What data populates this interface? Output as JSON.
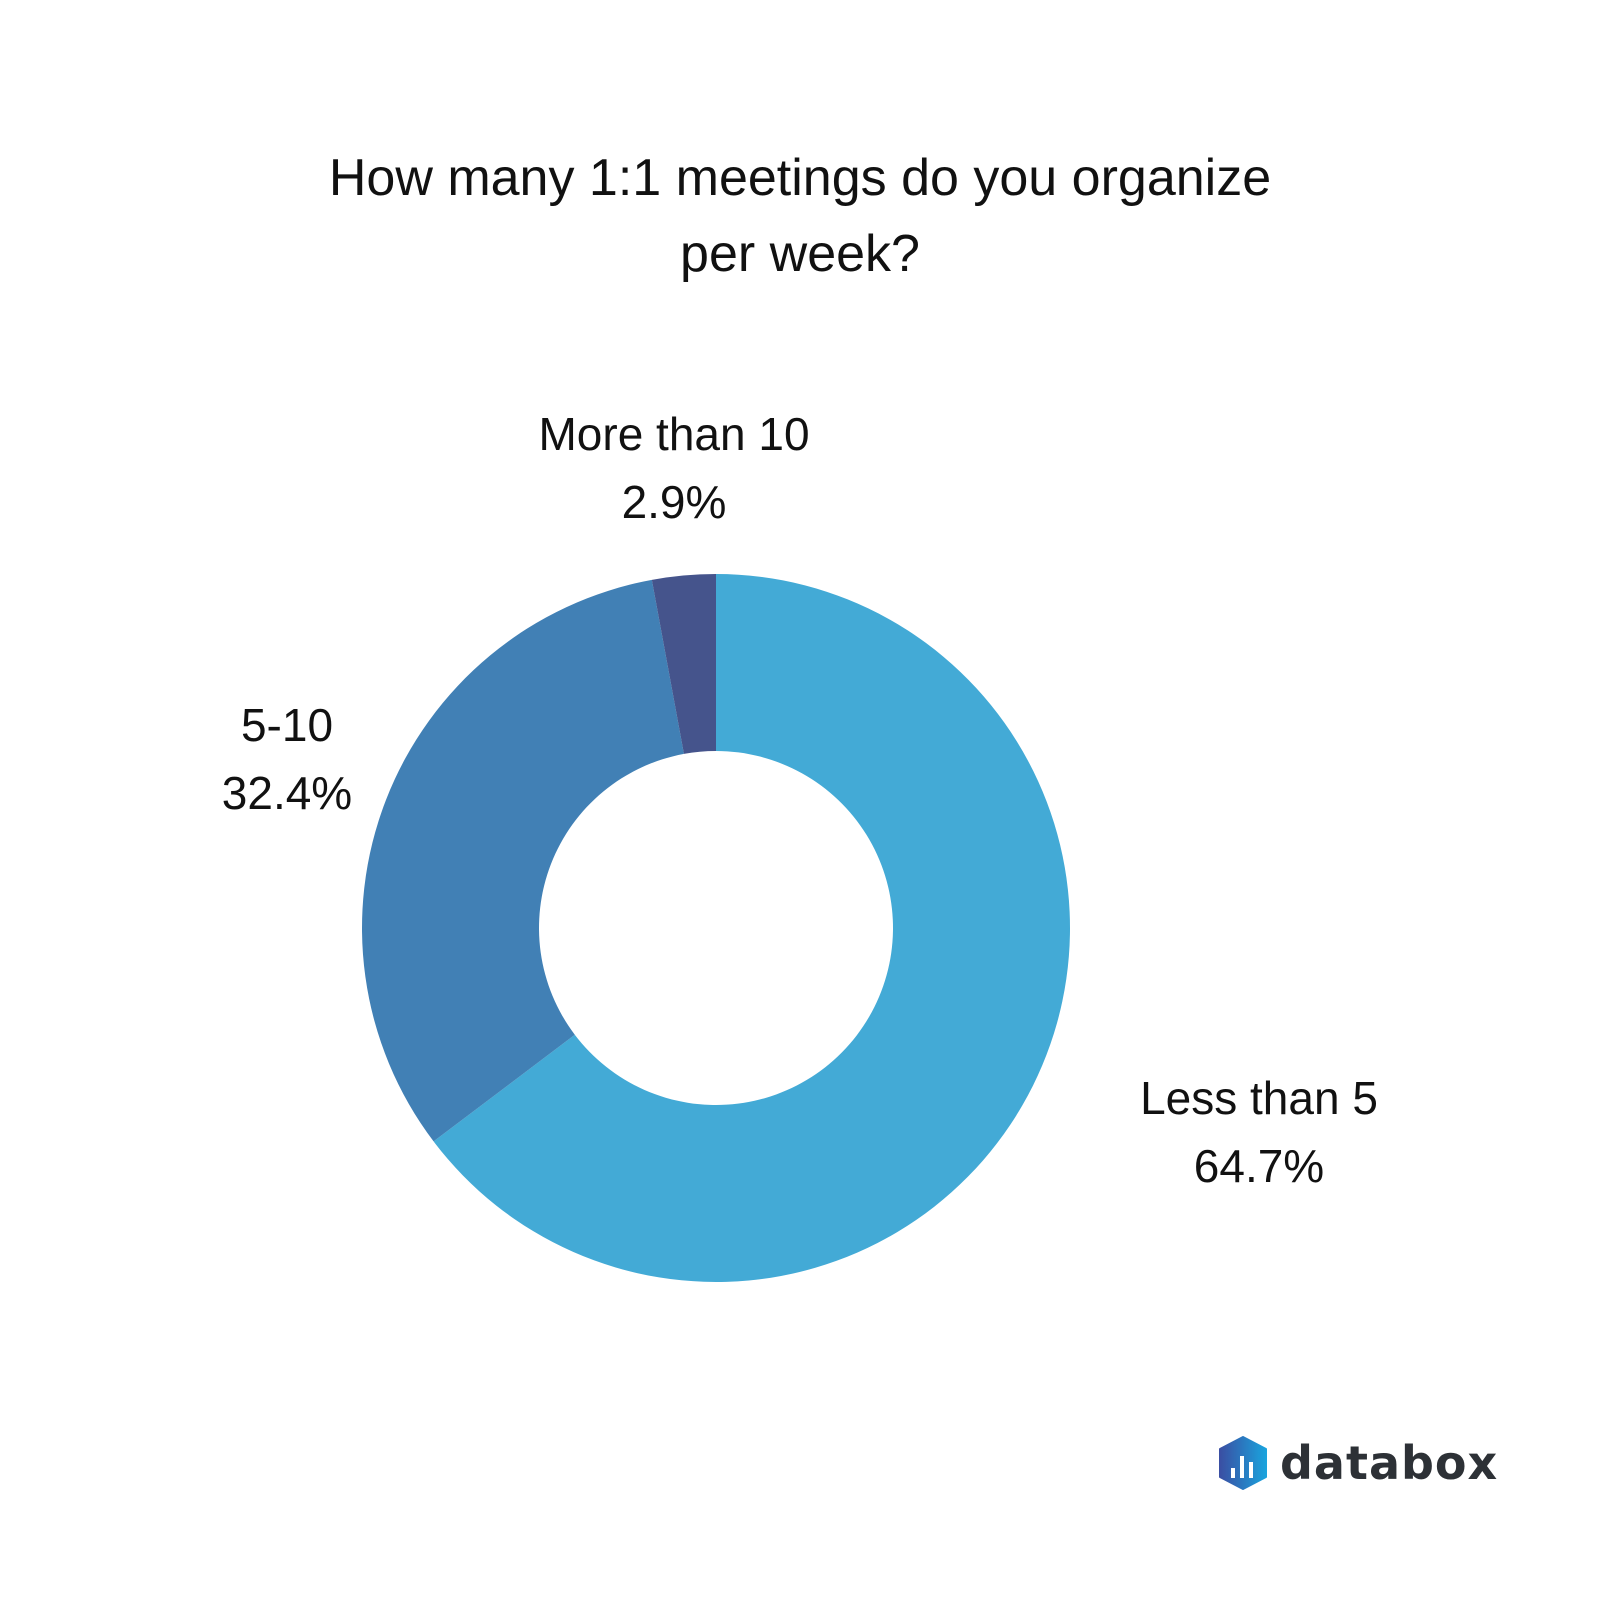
{
  "chart_data": {
    "type": "pie",
    "donut": true,
    "title": "How many 1:1 meetings do you organize per week?",
    "title_lines": [
      "How many 1:1 meetings do you organize",
      "per week?"
    ],
    "categories": [
      "Less than 5",
      "5-10",
      "More than 10"
    ],
    "values": [
      64.7,
      32.4,
      2.9
    ],
    "value_labels": [
      "64.7%",
      "32.4%",
      "2.9%"
    ],
    "colors": [
      "#43aad6",
      "#4180b5",
      "#45548c"
    ],
    "legend": "none"
  },
  "branding": {
    "logo_text": "databox"
  }
}
